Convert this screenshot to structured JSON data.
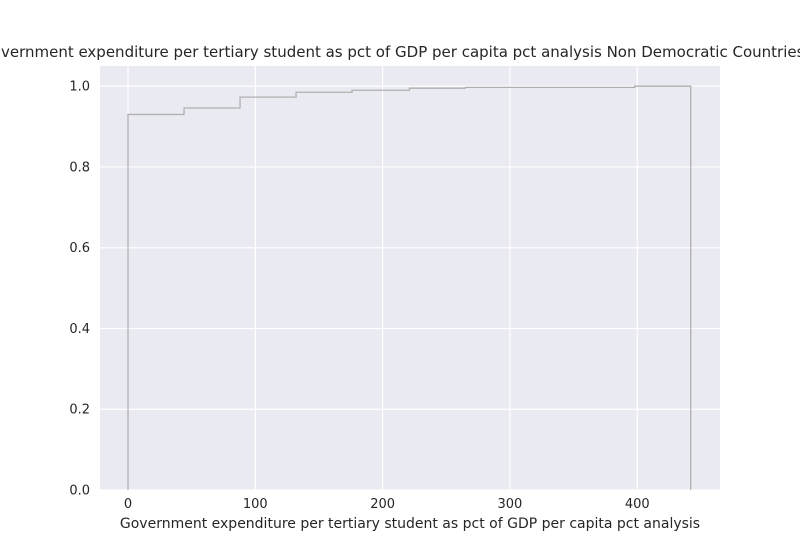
{
  "chart_data": {
    "type": "line",
    "style": "step",
    "title": "Government expenditure per tertiary student as pct of GDP per capita pct analysis Non Democratic Countries CDF",
    "xlabel": "Government expenditure per tertiary student as pct of GDP per capita pct analysis",
    "ylabel": "",
    "xlim": [
      -22,
      465
    ],
    "ylim": [
      0,
      1.05
    ],
    "x_ticks": [
      0,
      100,
      200,
      300,
      400
    ],
    "y_ticks": [
      0.0,
      0.2,
      0.4,
      0.6,
      0.8,
      1.0
    ],
    "x_tick_labels": [
      "0",
      "100",
      "200",
      "300",
      "400"
    ],
    "y_tick_labels": [
      "0.0",
      "0.2",
      "0.4",
      "0.6",
      "0.8",
      "1.0"
    ],
    "grid": true,
    "legend": "none",
    "series": [
      {
        "x": [
          0,
          0,
          44,
          44,
          88,
          88,
          132,
          132,
          176,
          176,
          221,
          221,
          265,
          265,
          398,
          398,
          442,
          442
        ],
        "y": [
          0.0,
          0.93,
          0.93,
          0.946,
          0.946,
          0.973,
          0.973,
          0.985,
          0.985,
          0.99,
          0.99,
          0.995,
          0.995,
          0.997,
          0.997,
          1.0,
          1.0,
          0.0
        ]
      }
    ],
    "colors": {
      "background": "#eaeaf2",
      "grid": "#ffffff",
      "line": "#b0b0b0",
      "text": "#262626"
    }
  }
}
